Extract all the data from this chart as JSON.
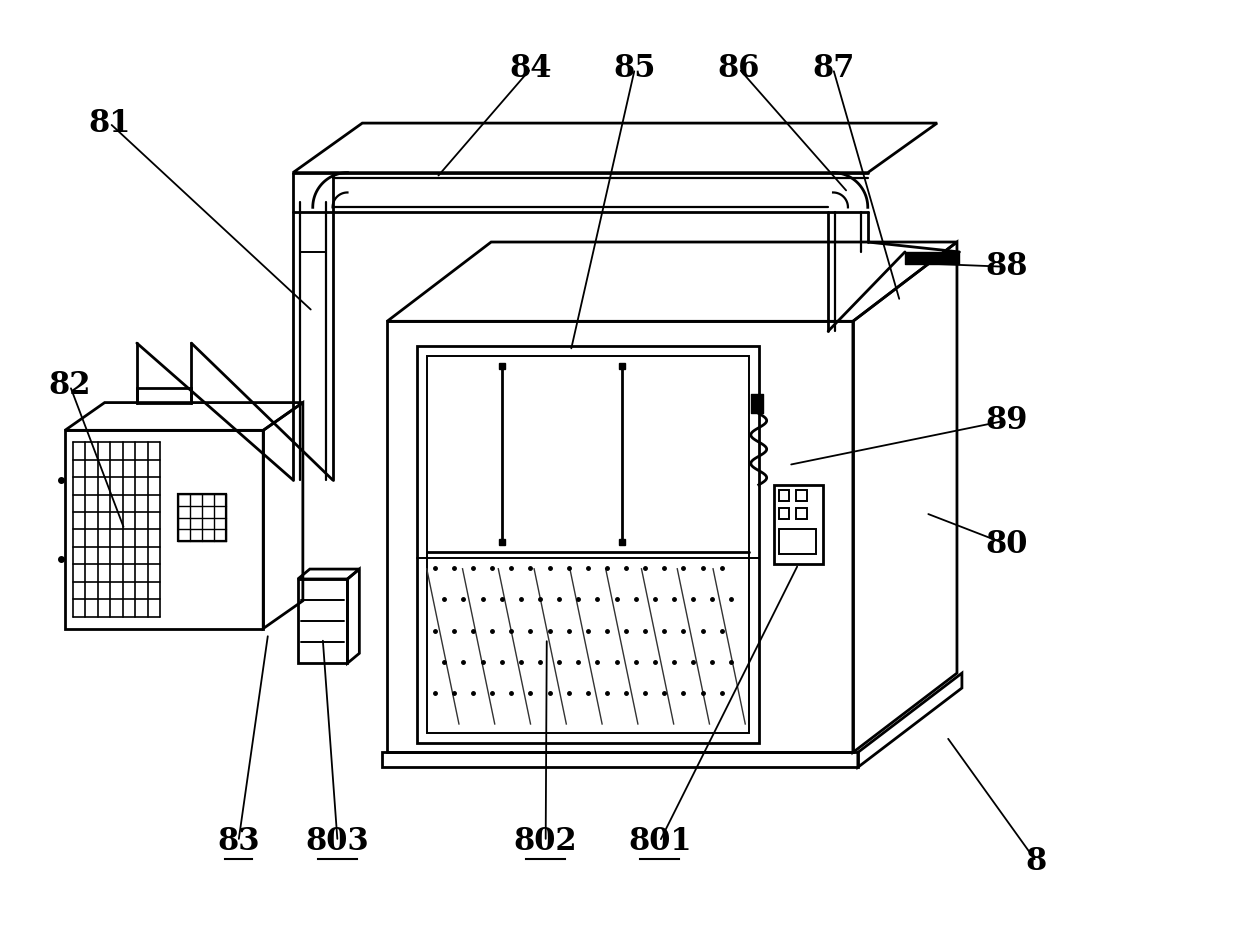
{
  "bg_color": "#ffffff",
  "lc": "#000000",
  "lw": 2.0,
  "lw_thin": 1.0,
  "lw_thick": 3.0
}
